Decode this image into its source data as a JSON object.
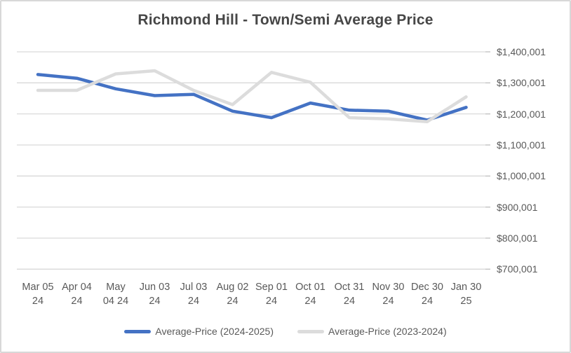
{
  "title": "Richmond Hill - Town/Semi Average Price",
  "colors": {
    "accent_blue": "#4472C4",
    "series_gray": "#DCDCDC",
    "gridline": "#D9D9D9",
    "tick_mark": "#BFBFBF",
    "axis_text": "#595959",
    "title_text": "#474747",
    "frame_border": "#D8D8D8"
  },
  "legend": {
    "items": [
      {
        "label": "Average-Price (2024-2025)",
        "color": "#4472C4"
      },
      {
        "label": "Average-Price (2023-2024)",
        "color": "#DCDCDC"
      }
    ]
  },
  "chart_data": {
    "type": "line",
    "title": "Richmond Hill - Town/Semi Average Price",
    "categories": [
      "Mar 05 24",
      "Apr 04 24",
      "May 04 24",
      "Jun 03 24",
      "Jul 03 24",
      "Aug 02 24",
      "Sep 01 24",
      "Oct 01 24",
      "Oct 31 24",
      "Nov 30 24",
      "Dec 30 24",
      "Jan 30 25"
    ],
    "category_label_lines": [
      [
        "Mar 05",
        "24"
      ],
      [
        "Apr 04",
        "24"
      ],
      [
        "May",
        "04 24"
      ],
      [
        "Jun 03",
        "24"
      ],
      [
        "Jul 03",
        "24"
      ],
      [
        "Aug 02",
        "24"
      ],
      [
        "Sep 01",
        "24"
      ],
      [
        "Oct 01",
        "24"
      ],
      [
        "Oct 31",
        "24"
      ],
      [
        "Nov 30",
        "24"
      ],
      [
        "Dec 30",
        "24"
      ],
      [
        "Jan 30",
        "25"
      ]
    ],
    "series": [
      {
        "name": "Average-Price (2024-2025)",
        "color": "#4472C4",
        "values": [
          1327000,
          1315000,
          1281000,
          1259000,
          1263000,
          1209000,
          1188000,
          1235000,
          1212000,
          1209000,
          1180000,
          1221000
        ]
      },
      {
        "name": "Average-Price (2023-2024)",
        "color": "#DCDCDC",
        "values": [
          1276000,
          1276000,
          1329000,
          1339000,
          1276000,
          1230000,
          1334000,
          1302000,
          1188000,
          1184000,
          1175000,
          1255000
        ]
      }
    ],
    "y_axis": {
      "side": "right",
      "min": 700001,
      "max": 1400001,
      "ticks": [
        {
          "value": 1400001,
          "label": "$1,400,001"
        },
        {
          "value": 1300001,
          "label": "$1,300,001"
        },
        {
          "value": 1200001,
          "label": "$1,200,001"
        },
        {
          "value": 1100001,
          "label": "$1,100,001"
        },
        {
          "value": 1000001,
          "label": "$1,000,001"
        },
        {
          "value": 900001,
          "label": "$900,001"
        },
        {
          "value": 800001,
          "label": "$800,001"
        },
        {
          "value": 700001,
          "label": "$700,001"
        }
      ]
    },
    "grid": true,
    "legend_position": "bottom"
  }
}
